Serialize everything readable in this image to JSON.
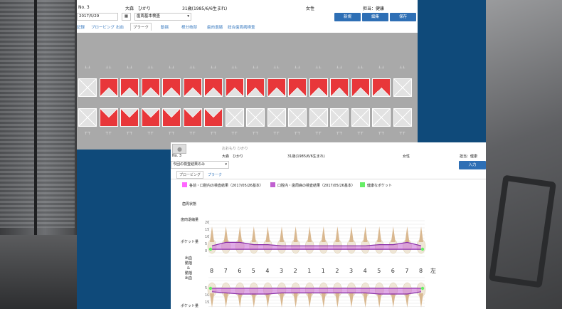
{
  "window1": {
    "patient_no": "No. 3",
    "patient_name": "大森　ひかり",
    "patient_age": "31歳(1985/6/6生まれ)",
    "gender": "女性",
    "doctor": "担当：健康",
    "date_value": "2017/5/29",
    "exam_select": "歯周基本検査",
    "buttons": {
      "new": "新規",
      "edit": "編集",
      "save": "保存"
    },
    "tabs": [
      "記録",
      "プロービング",
      "出血",
      "プラーク",
      "動揺",
      "根分岐部",
      "歯肉退縮",
      "総合歯周病検査"
    ],
    "active_tab": "プラーク",
    "upper_teeth_red": [
      0,
      1,
      1,
      1,
      1,
      1,
      1,
      1,
      1,
      1,
      1,
      1,
      1,
      1,
      1,
      0
    ],
    "lower_teeth_red": [
      0,
      1,
      1,
      1,
      1,
      1,
      1,
      0,
      0,
      0,
      0,
      0,
      0,
      0,
      0,
      0
    ]
  },
  "window2": {
    "patient_no": "No. 3",
    "patient_kana": "おおもり ひかり",
    "patient_name": "大森　ひかり",
    "patient_age": "31歳(1985/6/6生まれ)",
    "gender": "女性",
    "doctor": "担当：健康",
    "filter_select": "今回の検査結果のみ",
    "input_button": "入力",
    "tabs": [
      "プロービング",
      "プラーク"
    ],
    "legend": [
      {
        "color": "#ff66ff",
        "label": "各前・口腔内の検査結果（2017/05/26基本）"
      },
      {
        "color": "#c060d0",
        "label": "口腔内・歯周病の検査結果（2017/05/26基本）"
      },
      {
        "color": "#66ee66",
        "label": "健康なポケット"
      }
    ],
    "row_labels": {
      "mobility": "歯周状態",
      "gingiva": "歯肉退縮量",
      "pocket": "ポケット量",
      "attach": "出血\n動揺\n&\n動揺\n出血",
      "pocket_lower": "ポケット量"
    },
    "y_ticks": [
      "20",
      "15",
      "10",
      "5",
      "0"
    ],
    "y_ticks_lower": [
      "5",
      "10",
      "15"
    ],
    "tooth_numbers": [
      "8",
      "7",
      "6",
      "5",
      "4",
      "3",
      "2",
      "1",
      "1",
      "2",
      "3",
      "4",
      "5",
      "6",
      "7",
      "8",
      "左"
    ]
  },
  "chart_data": {
    "type": "line",
    "x": [
      "8",
      "7",
      "6",
      "5",
      "4",
      "3",
      "2",
      "1",
      "1",
      "2",
      "3",
      "4",
      "5",
      "6",
      "7",
      "8"
    ],
    "series": [
      {
        "values": [
          3,
          6,
          6,
          4,
          4,
          3,
          3,
          3,
          3,
          3,
          3,
          3,
          4,
          4,
          6,
          3
        ]
      },
      {
        "values": [
          3,
          4,
          5,
          5,
          5,
          4,
          4,
          4,
          4,
          4,
          4,
          4,
          5,
          5,
          5,
          3
        ]
      }
    ],
    "ylim": [
      0,
      20
    ]
  },
  "colors": {
    "accent": "#2e6fb5",
    "plaque_red": "#e8373a",
    "chart_purple": "#8a2fa8",
    "chart_fill": "#c968d6"
  }
}
